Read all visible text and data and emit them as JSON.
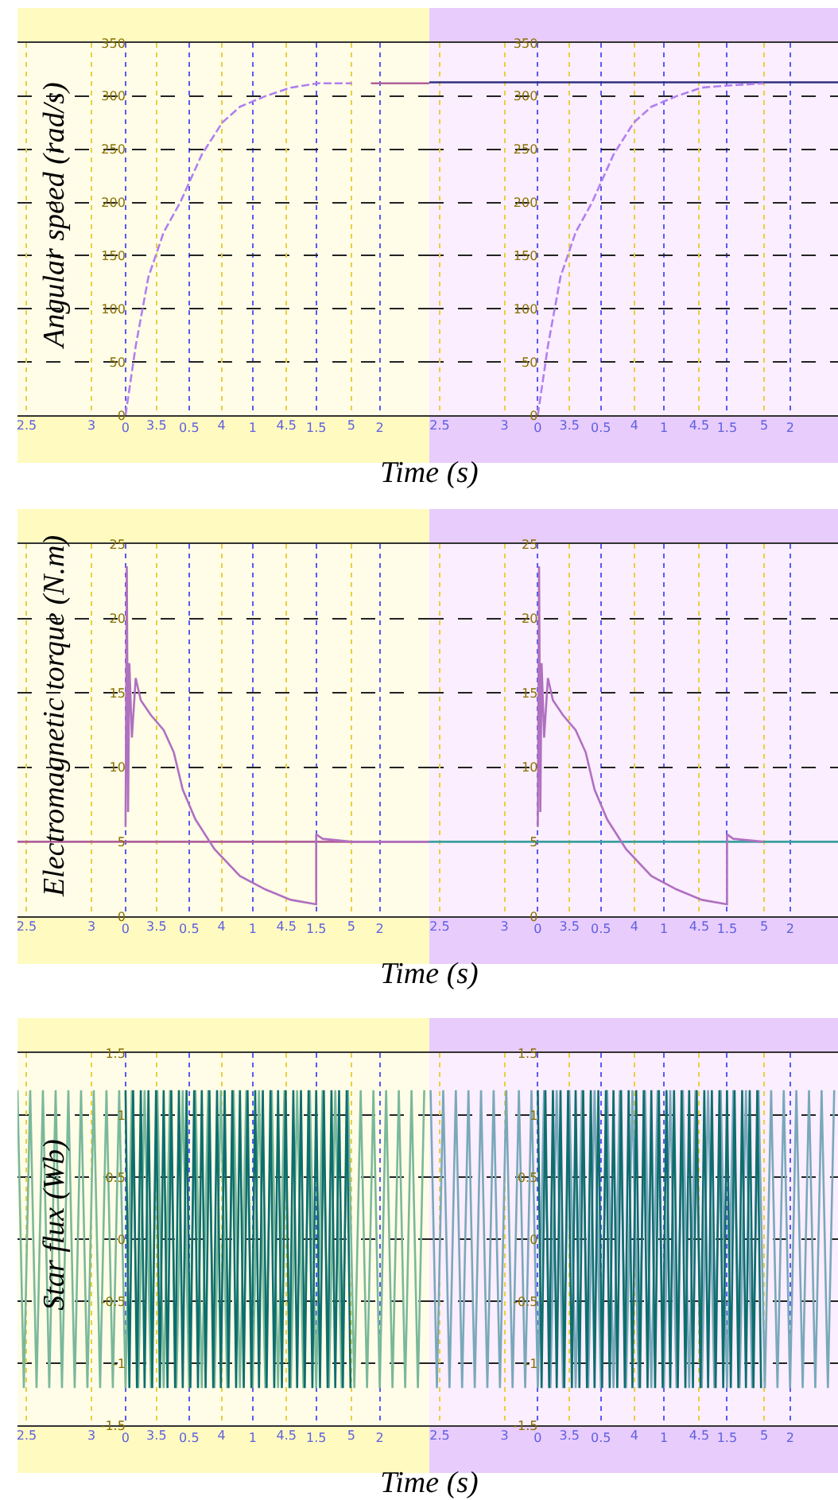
{
  "chart_data": [
    {
      "type": "line",
      "ylabel": "Angular speed (rad/s)",
      "xlabel": "Time (s)",
      "xlim": [
        -0.85,
        2.39
      ],
      "ylim": [
        0,
        350
      ],
      "xticks": [
        0,
        0.5,
        1,
        1.5,
        2
      ],
      "x2lim": [
        2.43,
        5.6
      ],
      "x2ticks": [
        2.5,
        3,
        3.5,
        4,
        4.5,
        5
      ],
      "yticks": [
        0,
        50,
        100,
        150,
        200,
        250,
        300,
        350
      ],
      "grid": true,
      "line_style": "dashed",
      "series": [
        {
          "color": "#b080f0",
          "x": [
            0,
            0.08,
            0.18,
            0.3,
            0.43,
            0.6,
            0.76,
            0.9,
            1.1,
            1.3,
            1.51,
            1.78
          ],
          "values": [
            0,
            65,
            130,
            172,
            200,
            245,
            275,
            290,
            300,
            308,
            312,
            312
          ]
        },
        {
          "color": "#b0609a",
          "line_style": "solid",
          "x": [
            1.93,
            2.39
          ],
          "values": [
            312,
            312
          ]
        }
      ]
    },
    {
      "type": "line",
      "xlim": [
        -0.86,
        2.38
      ],
      "ylim": [
        0,
        350
      ],
      "xticks": [
        0,
        0.5,
        1,
        1.5,
        2
      ],
      "x2lim": [
        2.42,
        5.57
      ],
      "x2ticks": [
        2.5,
        3,
        3.5,
        4,
        4.5,
        5
      ],
      "yticks": [
        0,
        50,
        100,
        150,
        200,
        250,
        300,
        350
      ],
      "grid": true,
      "line_style": "dashed",
      "series": [
        {
          "color": "#303080",
          "line_style": "solid",
          "x": [
            -0.86,
            2.38
          ],
          "values": [
            313,
            313
          ]
        },
        {
          "color": "#b080f0",
          "x": [
            0,
            0.08,
            0.18,
            0.3,
            0.43,
            0.6,
            0.76,
            0.9,
            1.1,
            1.3,
            1.51,
            1.79
          ],
          "values": [
            0,
            65,
            130,
            172,
            200,
            245,
            275,
            290,
            300,
            308,
            310,
            312
          ]
        }
      ]
    },
    {
      "type": "line",
      "ylabel": "Electromagnetic torque (N.m)",
      "xlabel": "Time (s)",
      "xlim": [
        -0.85,
        2.39
      ],
      "ylim": [
        0,
        25
      ],
      "xticks": [
        0,
        0.5,
        1,
        1.5,
        2
      ],
      "x2lim": [
        2.43,
        5.6
      ],
      "x2ticks": [
        2.5,
        3,
        3.5,
        4,
        4.5,
        5
      ],
      "yticks": [
        0,
        5,
        10,
        15,
        20,
        25
      ],
      "grid": true,
      "series": [
        {
          "color": "#b0609a",
          "x": [
            -0.85,
            2.39
          ],
          "values": [
            5,
            5
          ]
        },
        {
          "color": "#b070c0",
          "x": [
            0,
            0.01,
            0.02,
            0.03,
            0.05,
            0.08,
            0.12,
            0.2,
            0.3,
            0.38,
            0.45,
            0.55,
            0.7,
            0.9,
            1.1,
            1.3,
            1.5,
            1.5,
            1.55,
            1.78,
            2.39
          ],
          "values": [
            6,
            23.5,
            7,
            17,
            12,
            16,
            14.5,
            13.5,
            12.5,
            11,
            8.5,
            6.5,
            4.5,
            2.7,
            1.8,
            1.1,
            0.8,
            5.5,
            5.2,
            5,
            5
          ]
        }
      ]
    },
    {
      "type": "line",
      "xlim": [
        -0.86,
        2.38
      ],
      "ylim": [
        0,
        25
      ],
      "xticks": [
        0,
        0.5,
        1,
        1.5,
        2
      ],
      "x2lim": [
        2.42,
        5.57
      ],
      "x2ticks": [
        2.5,
        3,
        3.5,
        4,
        4.5,
        5
      ],
      "yticks": [
        0,
        5,
        10,
        15,
        20,
        25
      ],
      "grid": true,
      "series": [
        {
          "color": "#3aa0a0",
          "x": [
            -0.86,
            2.38
          ],
          "values": [
            5,
            5
          ]
        },
        {
          "color": "#b070c0",
          "x": [
            0,
            0.01,
            0.02,
            0.03,
            0.05,
            0.08,
            0.12,
            0.2,
            0.3,
            0.38,
            0.45,
            0.55,
            0.7,
            0.9,
            1.1,
            1.3,
            1.5,
            1.5,
            1.55,
            1.79
          ],
          "values": [
            6,
            23.5,
            7,
            17,
            12,
            16,
            14.5,
            13.5,
            12.5,
            11,
            8.5,
            6.5,
            4.5,
            2.7,
            1.8,
            1.1,
            0.8,
            5.5,
            5.2,
            5
          ]
        }
      ]
    },
    {
      "type": "line",
      "ylabel": "Star flux (Wb)",
      "xlabel": "Time (s)",
      "xlim": [
        -0.85,
        2.39
      ],
      "ylim": [
        -1.5,
        1.5
      ],
      "xticks": [
        0,
        0.5,
        1,
        1.5,
        2
      ],
      "x2lim": [
        2.43,
        5.6
      ],
      "x2ticks": [
        2.5,
        3,
        3.5,
        4,
        4.5,
        5
      ],
      "yticks": [
        -1.5,
        -1,
        -0.5,
        0,
        0.5,
        1,
        1.5
      ],
      "grid": true,
      "series": [
        {
          "color": "#7ab89a",
          "x": [
            -0.85,
            -0.8,
            -0.75,
            -0.7,
            -0.65,
            -0.6,
            -0.55,
            -0.5,
            -0.45,
            -0.4,
            -0.35,
            -0.3,
            -0.25,
            -0.2,
            -0.15,
            -0.1,
            -0.05,
            0,
            0.05,
            0.1,
            0.15,
            0.2,
            0.25,
            0.3,
            0.35,
            0.4,
            0.45,
            0.5,
            0.55,
            0.6,
            0.65,
            0.7,
            0.75,
            0.8,
            0.85,
            0.9,
            0.95,
            1,
            1.05,
            1.1,
            1.15,
            1.2,
            1.25,
            1.3,
            1.35,
            1.4,
            1.45,
            1.5,
            1.55,
            1.6,
            1.65,
            1.7,
            1.75,
            1.8,
            1.85,
            1.9,
            1.95,
            2,
            2.05,
            2.1,
            2.15,
            2.2,
            2.25,
            2.3,
            2.35
          ],
          "values": [
            1.2,
            -1.2,
            1.2,
            -1.2,
            1.2,
            -1.2,
            1.2,
            -1.2,
            1.2,
            -1.2,
            1.2,
            -1.2,
            1.2,
            -1.2,
            1.2,
            -1.2,
            1.2,
            -1.2,
            1.2,
            -1.2,
            1.2,
            -1.2,
            1.2,
            -1.2,
            1.2,
            -1.2,
            1.2,
            -1.2,
            1.2,
            -1.2,
            1.2,
            -1.2,
            1.2,
            -1.2,
            1.2,
            -1.2,
            1.2,
            -1.2,
            1.2,
            -1.2,
            1.2,
            -1.2,
            1.2,
            -1.2,
            1.2,
            -1.2,
            1.2,
            -1.2,
            1.2,
            -1.2,
            1.2,
            -1.2,
            1.2,
            -1.2,
            1.2,
            -1.2,
            1.2,
            -1.2,
            1.2,
            -1.2,
            1.2,
            -1.2,
            1.2,
            -1.2,
            1.2
          ]
        },
        {
          "color": "#0d6e6e",
          "x": [
            0,
            0.03,
            0.06,
            0.09,
            0.12,
            0.15,
            0.18,
            0.21,
            0.24,
            0.27,
            0.3,
            0.33,
            0.36,
            0.39,
            0.42,
            0.45,
            0.48,
            0.51,
            0.54,
            0.57,
            0.6,
            0.63,
            0.66,
            0.69,
            0.72,
            0.75,
            0.78,
            0.81,
            0.84,
            0.87,
            0.9,
            0.93,
            0.96,
            0.99,
            1.02,
            1.05,
            1.08,
            1.11,
            1.14,
            1.17,
            1.2,
            1.23,
            1.26,
            1.29,
            1.32,
            1.35,
            1.38,
            1.41,
            1.44,
            1.47,
            1.5,
            1.53,
            1.56,
            1.59,
            1.62,
            1.65,
            1.68,
            1.71,
            1.74,
            1.77
          ],
          "values": [
            1.2,
            -1.2,
            1.2,
            -1.2,
            1.2,
            -1.2,
            1.2,
            -1.2,
            1.2,
            -1.2,
            1.2,
            -1.2,
            1.2,
            -1.2,
            1.2,
            -1.2,
            1.2,
            -1.2,
            1.2,
            -1.2,
            1.2,
            -1.2,
            1.2,
            -1.2,
            1.2,
            -1.2,
            1.2,
            -1.2,
            1.2,
            -1.2,
            1.2,
            -1.2,
            1.2,
            -1.2,
            1.2,
            -1.2,
            1.2,
            -1.2,
            1.2,
            -1.2,
            1.2,
            -1.2,
            1.2,
            -1.2,
            1.2,
            -1.2,
            1.2,
            -1.2,
            1.2,
            -1.2,
            1.2,
            -1.2,
            1.2,
            -1.2,
            1.2,
            -1.2,
            1.2,
            -1.2,
            1.2,
            -1.2
          ]
        }
      ]
    },
    {
      "type": "line",
      "xlim": [
        -0.86,
        2.38
      ],
      "ylim": [
        -1.5,
        1.5
      ],
      "xticks": [
        0,
        0.5,
        1,
        1.5,
        2
      ],
      "x2lim": [
        2.42,
        5.57
      ],
      "x2ticks": [
        2.5,
        3,
        3.5,
        4,
        4.5,
        5
      ],
      "yticks": [
        -1.5,
        -1,
        -0.5,
        0,
        0.5,
        1,
        1.5
      ],
      "grid": true,
      "series": [
        {
          "color": "#79a8ba",
          "x": [
            -0.85,
            -0.8,
            -0.75,
            -0.7,
            -0.65,
            -0.6,
            -0.55,
            -0.5,
            -0.45,
            -0.4,
            -0.35,
            -0.3,
            -0.25,
            -0.2,
            -0.15,
            -0.1,
            -0.05,
            0,
            0.05,
            0.1,
            0.15,
            0.2,
            0.25,
            0.3,
            0.35,
            0.4,
            0.45,
            0.5,
            0.55,
            0.6,
            0.65,
            0.7,
            0.75,
            0.8,
            0.85,
            0.9,
            0.95,
            1,
            1.05,
            1.1,
            1.15,
            1.2,
            1.25,
            1.3,
            1.35,
            1.4,
            1.45,
            1.5,
            1.55,
            1.6,
            1.65,
            1.7,
            1.75,
            1.8,
            1.85,
            1.9,
            1.95,
            2,
            2.05,
            2.1,
            2.15,
            2.2,
            2.25,
            2.3,
            2.35
          ],
          "values": [
            1.2,
            -1.2,
            1.2,
            -1.2,
            1.2,
            -1.2,
            1.2,
            -1.2,
            1.2,
            -1.2,
            1.2,
            -1.2,
            1.2,
            -1.2,
            1.2,
            -1.2,
            1.2,
            -1.2,
            1.2,
            -1.2,
            1.2,
            -1.2,
            1.2,
            -1.2,
            1.2,
            -1.2,
            1.2,
            -1.2,
            1.2,
            -1.2,
            1.2,
            -1.2,
            1.2,
            -1.2,
            1.2,
            -1.2,
            1.2,
            -1.2,
            1.2,
            -1.2,
            1.2,
            -1.2,
            1.2,
            -1.2,
            1.2,
            -1.2,
            1.2,
            -1.2,
            1.2,
            -1.2,
            1.2,
            -1.2,
            1.2,
            -1.2,
            1.2,
            -1.2,
            1.2,
            -1.2,
            1.2,
            -1.2,
            1.2,
            -1.2,
            1.2,
            -1.2,
            1.2
          ]
        },
        {
          "color": "#0d6e6e",
          "x": [
            0,
            0.03,
            0.06,
            0.09,
            0.12,
            0.15,
            0.18,
            0.21,
            0.24,
            0.27,
            0.3,
            0.33,
            0.36,
            0.39,
            0.42,
            0.45,
            0.48,
            0.51,
            0.54,
            0.57,
            0.6,
            0.63,
            0.66,
            0.69,
            0.72,
            0.75,
            0.78,
            0.81,
            0.84,
            0.87,
            0.9,
            0.93,
            0.96,
            0.99,
            1.02,
            1.05,
            1.08,
            1.11,
            1.14,
            1.17,
            1.2,
            1.23,
            1.26,
            1.29,
            1.32,
            1.35,
            1.38,
            1.41,
            1.44,
            1.47,
            1.5,
            1.53,
            1.56,
            1.59,
            1.62,
            1.65,
            1.68,
            1.71,
            1.74,
            1.77
          ],
          "values": [
            1.2,
            -1.2,
            1.2,
            -1.2,
            1.2,
            -1.2,
            1.2,
            -1.2,
            1.2,
            -1.2,
            1.2,
            -1.2,
            1.2,
            -1.2,
            1.2,
            -1.2,
            1.2,
            -1.2,
            1.2,
            -1.2,
            1.2,
            -1.2,
            1.2,
            -1.2,
            1.2,
            -1.2,
            1.2,
            -1.2,
            1.2,
            -1.2,
            1.2,
            -1.2,
            1.2,
            -1.2,
            1.2,
            -1.2,
            1.2,
            -1.2,
            1.2,
            -1.2,
            1.2,
            -1.2,
            1.2,
            -1.2,
            1.2,
            -1.2,
            1.2,
            -1.2,
            1.2,
            -1.2,
            1.2,
            -1.2,
            1.2,
            -1.2,
            1.2,
            -1.2,
            1.2,
            -1.2,
            1.2,
            -1.2
          ]
        }
      ]
    }
  ]
}
